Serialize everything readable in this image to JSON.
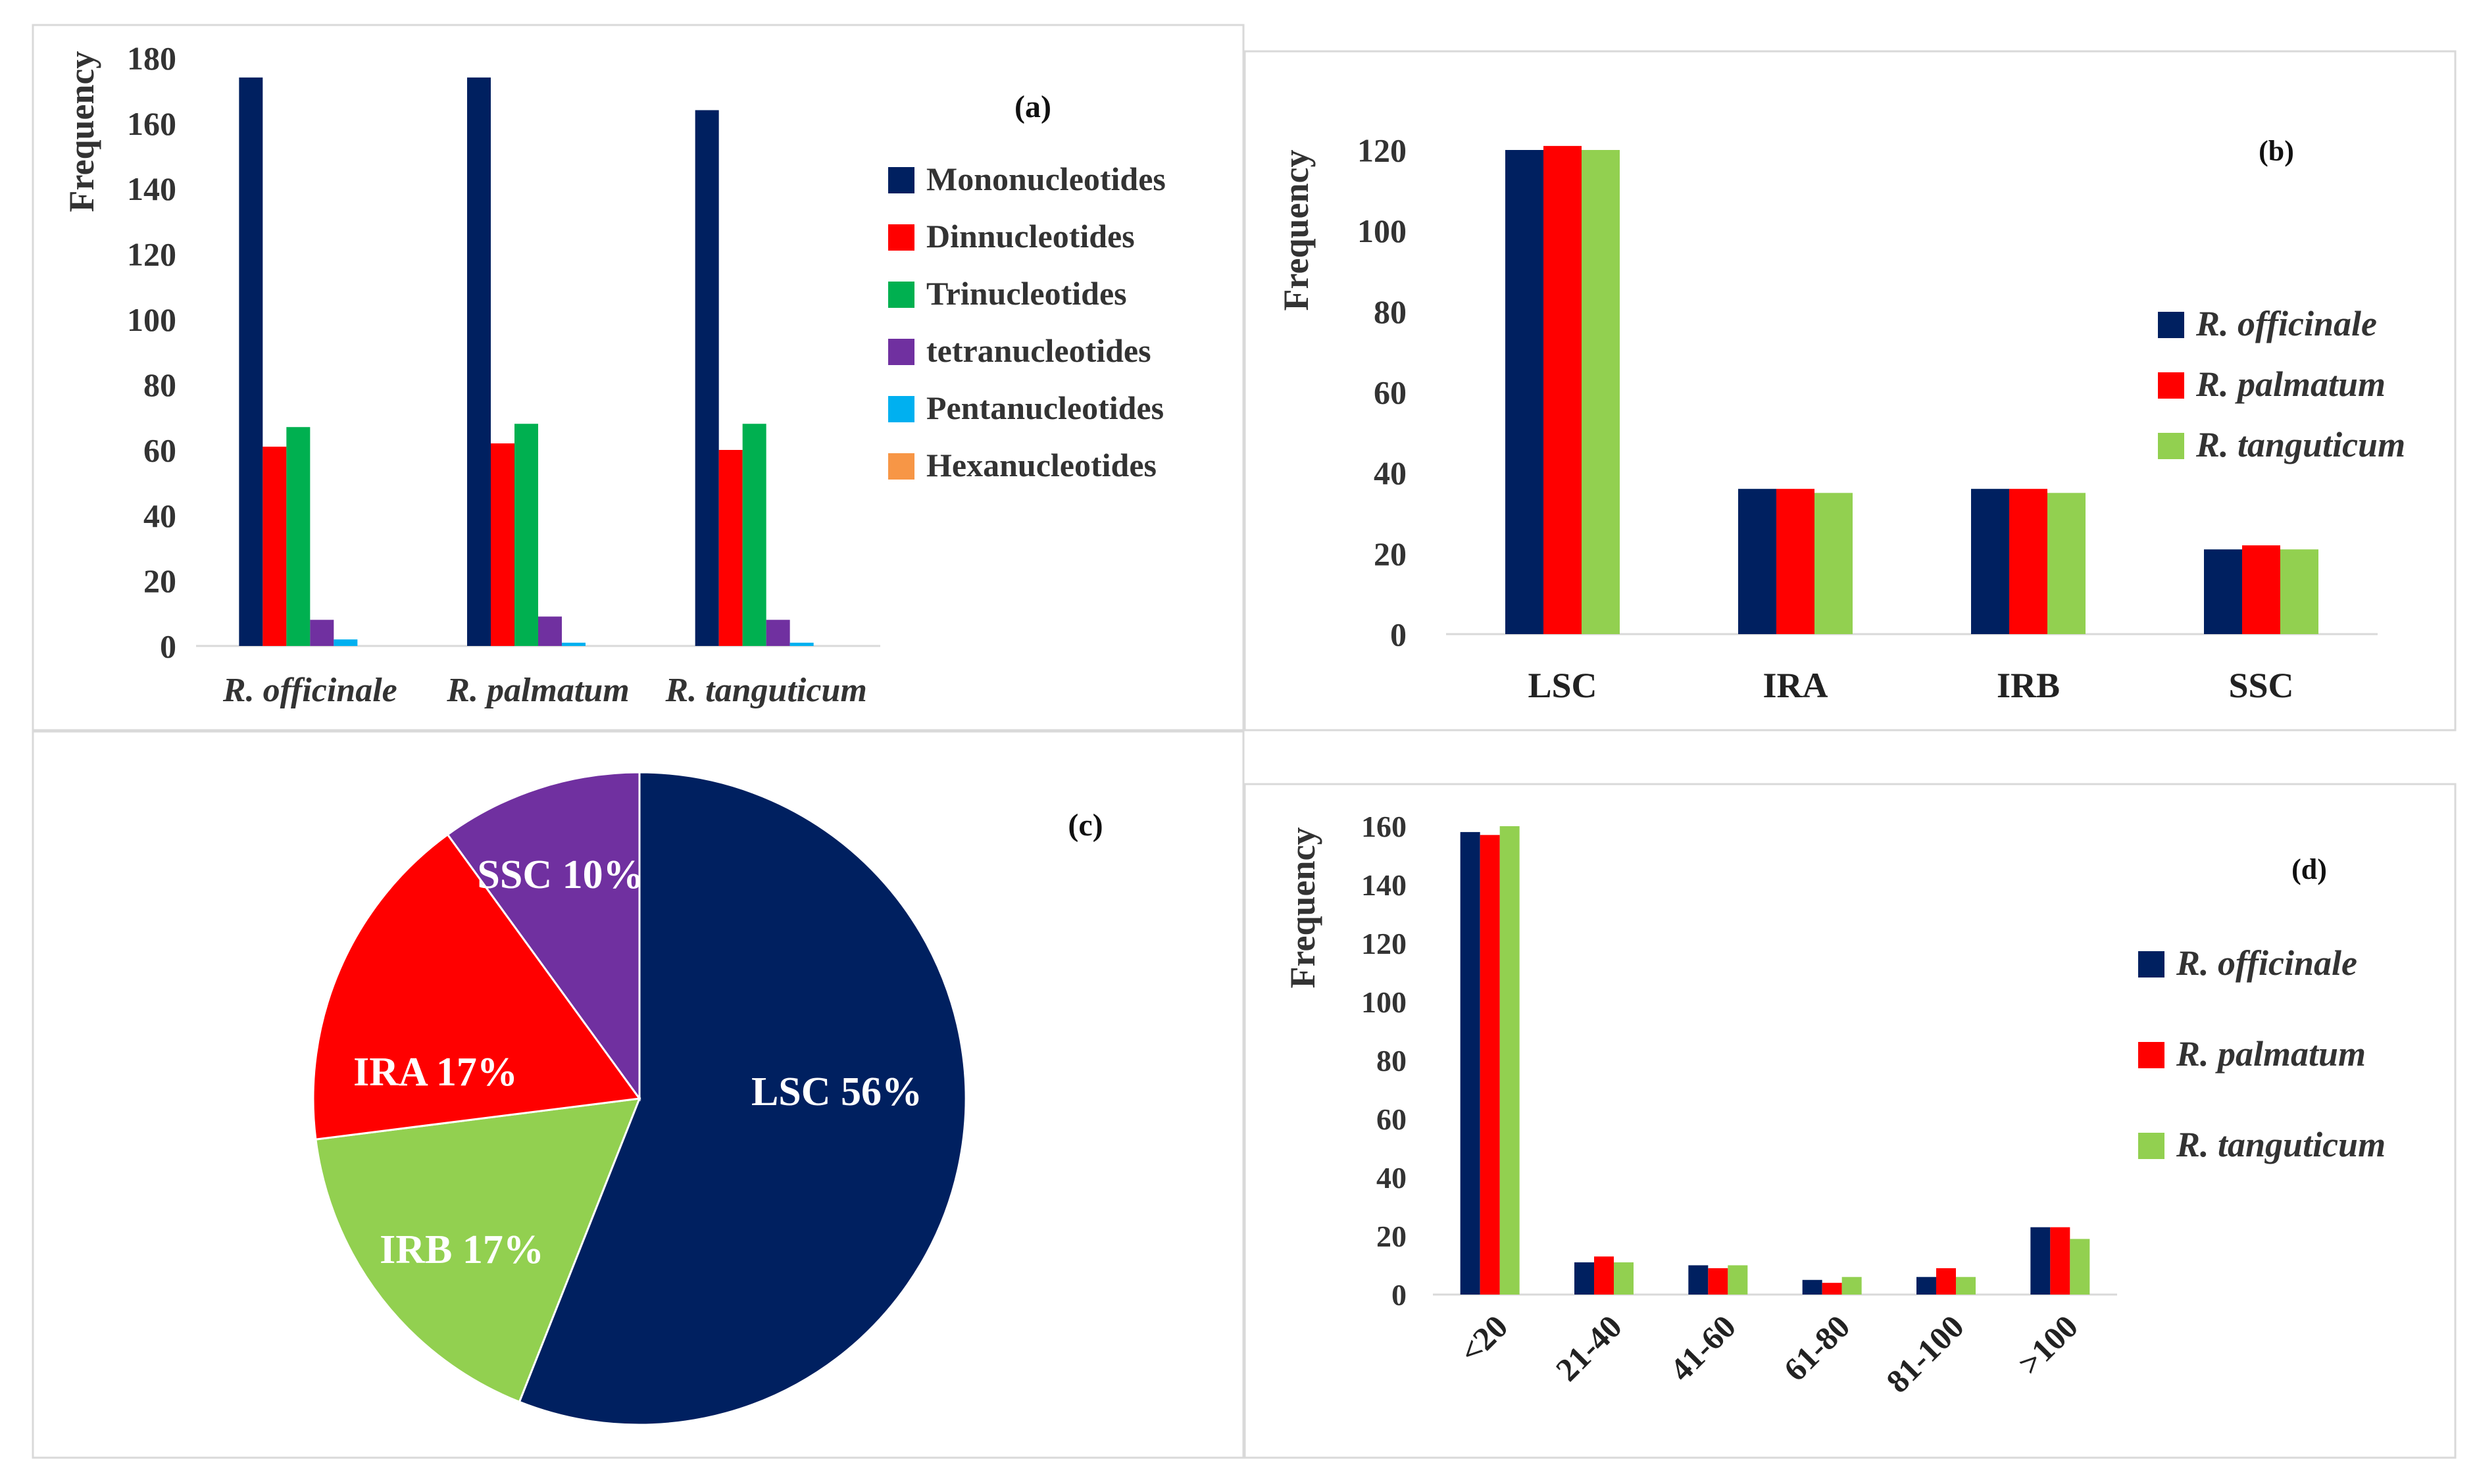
{
  "chart_data": [
    {
      "id": "a",
      "type": "bar",
      "panel_label": "(a)",
      "ylabel": "Frequency",
      "xlabel": "",
      "ylim": [
        0,
        180
      ],
      "yticks": [
        0,
        20,
        40,
        60,
        80,
        100,
        120,
        140,
        160,
        180
      ],
      "categories": [
        "R. officinale",
        "R. palmatum",
        "R. tanguticum"
      ],
      "legend_position": "right",
      "series": [
        {
          "name": "Mononucleotides",
          "color": "#002060",
          "values": [
            174,
            174,
            164
          ]
        },
        {
          "name": "Dinnucleotides",
          "color": "#ff0000",
          "values": [
            61,
            62,
            60
          ]
        },
        {
          "name": "Trinucleotides",
          "color": "#00b050",
          "values": [
            67,
            68,
            68
          ]
        },
        {
          "name": "tetranucleotides",
          "color": "#7030a0",
          "values": [
            8,
            9,
            8
          ]
        },
        {
          "name": "Pentanucleotides",
          "color": "#00b0f0",
          "values": [
            2,
            1,
            1
          ]
        },
        {
          "name": "Hexanucleotides",
          "color": "#f79646",
          "values": [
            0,
            0,
            0
          ]
        }
      ]
    },
    {
      "id": "b",
      "type": "bar",
      "panel_label": "(b)",
      "ylabel": "Frequency",
      "xlabel": "",
      "ylim": [
        0,
        120
      ],
      "yticks": [
        0,
        20,
        40,
        60,
        80,
        100,
        120
      ],
      "categories": [
        "LSC",
        "IRA",
        "IRB",
        "SSC"
      ],
      "legend_position": "right",
      "series": [
        {
          "name": "R. officinale",
          "color": "#002060",
          "values": [
            120,
            36,
            36,
            21
          ]
        },
        {
          "name": "R. palmatum",
          "color": "#ff0000",
          "values": [
            121,
            36,
            36,
            22
          ]
        },
        {
          "name": "R. tanguticum",
          "color": "#92d050",
          "values": [
            120,
            35,
            35,
            21
          ]
        }
      ]
    },
    {
      "id": "c",
      "type": "pie",
      "panel_label": "(c)",
      "slices": [
        {
          "label": "LSC 56%",
          "value": 56,
          "color": "#002060"
        },
        {
          "label": "IRB 17%",
          "value": 17,
          "color": "#92d050"
        },
        {
          "label": "IRA 17%",
          "value": 17,
          "color": "#ff0000"
        },
        {
          "label": "SSC 10%",
          "value": 10,
          "color": "#7030a0"
        }
      ]
    },
    {
      "id": "d",
      "type": "bar",
      "panel_label": "(d)",
      "ylabel": "Frequency",
      "xlabel": "",
      "ylim": [
        0,
        160
      ],
      "yticks": [
        0,
        20,
        40,
        60,
        80,
        100,
        120,
        140,
        160
      ],
      "categories": [
        "<20",
        "21-40",
        "41-60",
        "61-80",
        "81-100",
        ">100"
      ],
      "legend_position": "right",
      "series": [
        {
          "name": "R. officinale",
          "color": "#002060",
          "values": [
            158,
            11,
            10,
            5,
            6,
            23
          ]
        },
        {
          "name": "R. palmatum",
          "color": "#ff0000",
          "values": [
            157,
            13,
            9,
            4,
            9,
            23
          ]
        },
        {
          "name": "R. tanguticum",
          "color": "#92d050",
          "values": [
            160,
            11,
            10,
            6,
            6,
            19
          ]
        }
      ]
    }
  ]
}
